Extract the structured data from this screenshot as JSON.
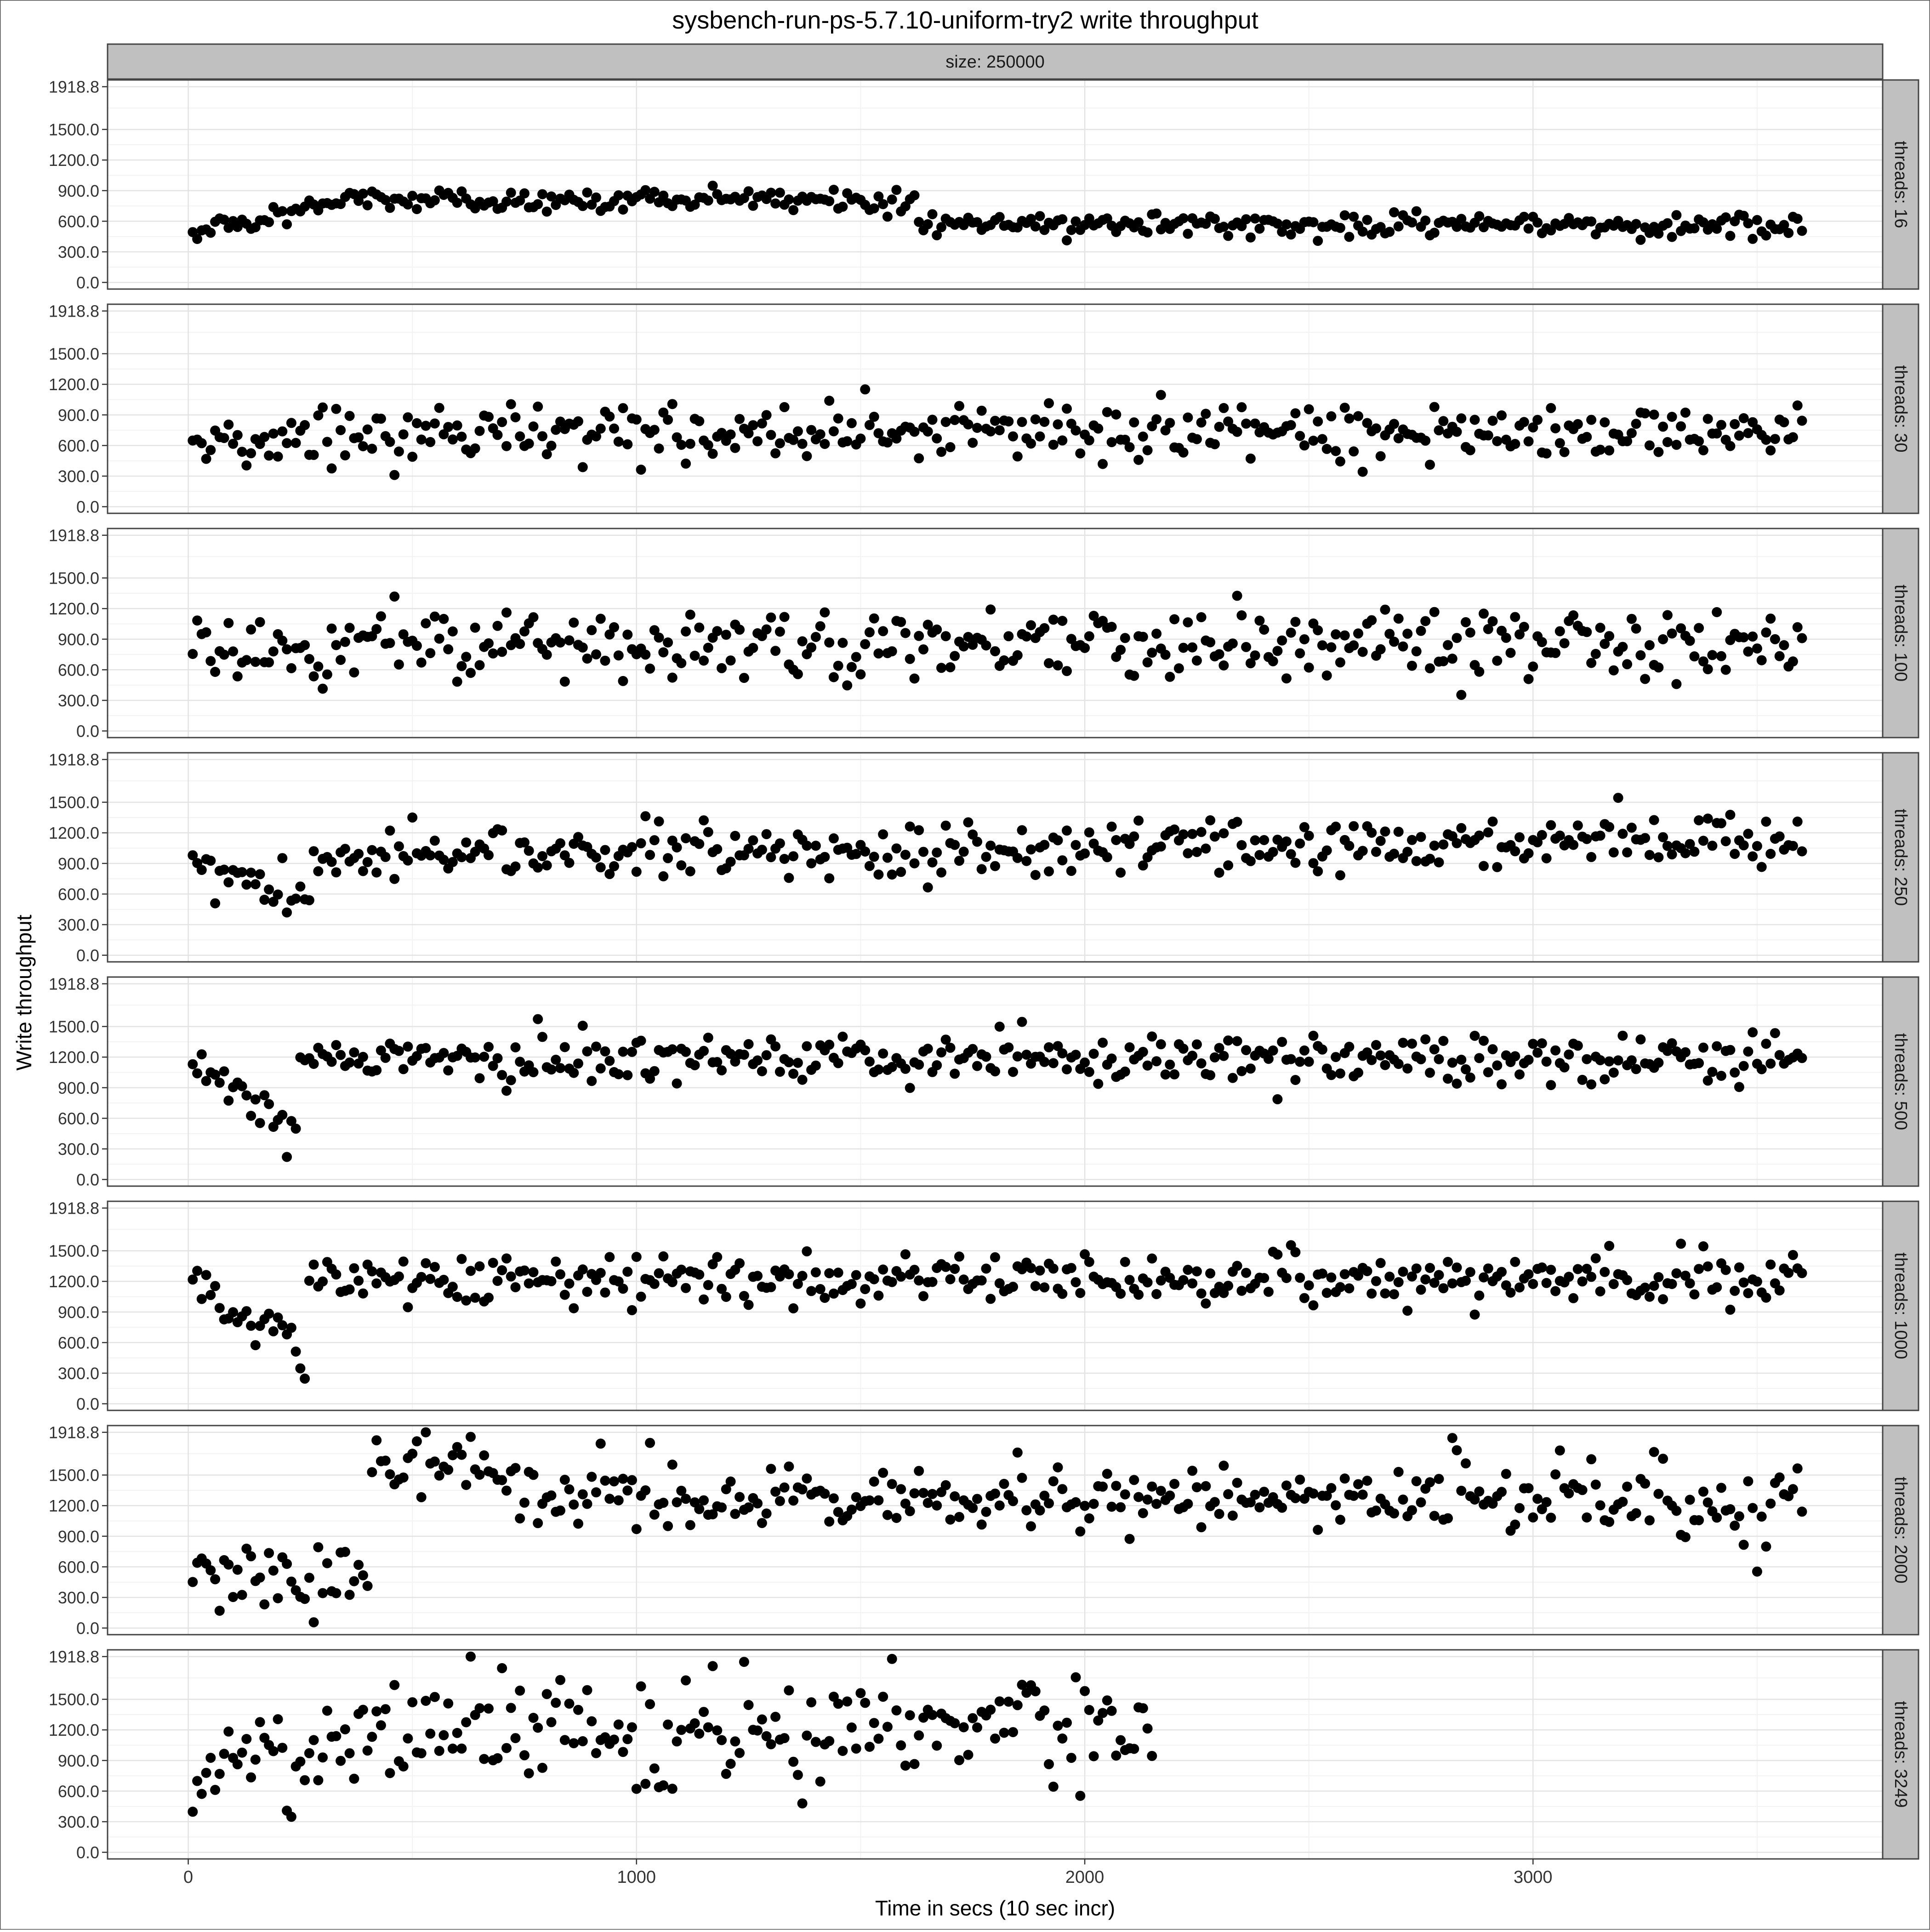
{
  "chart_data": {
    "type": "scatter",
    "title": "sysbench-run-ps-5.7.10-uniform-try2 write throughput",
    "xlabel": "Time in secs (10 sec incr)",
    "ylabel": "Write throughput",
    "column_facet": "size: 250000",
    "xlim": [
      -180,
      3780
    ],
    "ylim": [
      -65,
      1985
    ],
    "x_ticks": [
      0,
      1000,
      2000,
      3000
    ],
    "x_tick_labels": [
      "0",
      "1000",
      "2000",
      "3000"
    ],
    "y_ticks": [
      0,
      300,
      600,
      900,
      1200,
      1500,
      1918.8
    ],
    "y_tick_labels": [
      "0.0",
      "300.0",
      "600.0",
      "900.0",
      "1200.0",
      "1500.0",
      "1918.8"
    ],
    "grid": true,
    "legend": "none",
    "point_color": "#000000",
    "facets": [
      {
        "label": "threads: 16",
        "x_end": 3600,
        "segments": [
          [
            0,
            490,
            380,
            820
          ],
          [
            380,
            820,
            1620,
            800
          ],
          [
            1620,
            590,
            3600,
            560
          ]
        ],
        "noise": 55,
        "seed": 1
      },
      {
        "label": "threads: 30",
        "x_end": 3600,
        "segments": [
          [
            0,
            620,
            280,
            560
          ],
          [
            280,
            720,
            3600,
            730
          ]
        ],
        "noise": 130,
        "seed": 2
      },
      {
        "label": "threads: 100",
        "x_end": 3600,
        "segments": [
          [
            0,
            900,
            300,
            600
          ],
          [
            300,
            880,
            3600,
            880
          ]
        ],
        "noise": 170,
        "seed": 3
      },
      {
        "label": "threads: 250",
        "x_end": 3600,
        "segments": [
          [
            0,
            950,
            270,
            550
          ],
          [
            270,
            960,
            3600,
            1150
          ]
        ],
        "noise": 130,
        "seed": 4
      },
      {
        "label": "threads: 500",
        "x_end": 3600,
        "segments": [
          [
            0,
            1220,
            240,
            450
          ],
          [
            240,
            1180,
            3600,
            1200
          ]
        ],
        "noise": 120,
        "seed": 5
      },
      {
        "label": "threads: 1000",
        "x_end": 3600,
        "segments": [
          [
            0,
            1240,
            260,
            500
          ],
          [
            260,
            1200,
            3600,
            1240
          ]
        ],
        "noise": 120,
        "seed": 6
      },
      {
        "label": "threads: 2000",
        "x_end": 3600,
        "segments": [
          [
            0,
            500,
            400,
            500
          ],
          [
            400,
            1600,
            700,
            1550
          ],
          [
            700,
            1300,
            3600,
            1250
          ]
        ],
        "noise": 190,
        "seed": 7
      },
      {
        "label": "threads: 3249",
        "x_end": 2150,
        "segments": [
          [
            0,
            900,
            300,
            900
          ],
          [
            300,
            1200,
            2150,
            1200
          ]
        ],
        "noise": 260,
        "seed": 8
      }
    ]
  }
}
